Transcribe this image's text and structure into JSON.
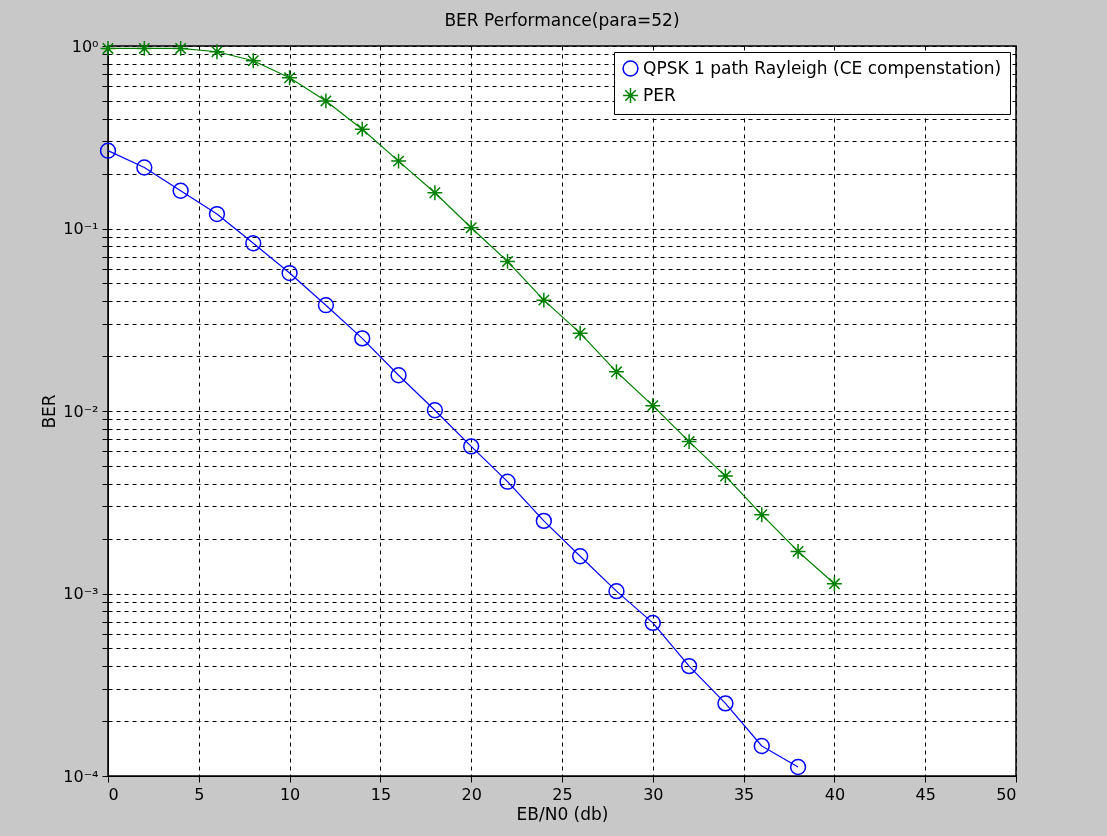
{
  "chart_data": {
    "type": "line",
    "title": "BER Performance(para=52)",
    "xlabel": "EB/N0 (db)",
    "ylabel": "BER",
    "xlim": [
      0,
      50
    ],
    "xticks": [
      0,
      5,
      10,
      15,
      20,
      25,
      30,
      35,
      40,
      45,
      50
    ],
    "ylim": [
      0.0001,
      1
    ],
    "log": true,
    "yticks": [
      {
        "value": 0.0001,
        "label": "10⁻⁴"
      },
      {
        "value": 0.0002,
        "label": null
      },
      {
        "value": 0.0003,
        "label": null
      },
      {
        "value": 0.0004,
        "label": null
      },
      {
        "value": 0.0005,
        "label": null
      },
      {
        "value": 0.0006,
        "label": null
      },
      {
        "value": 0.0007,
        "label": null
      },
      {
        "value": 0.0008,
        "label": null
      },
      {
        "value": 0.0009,
        "label": null
      },
      {
        "value": 0.001,
        "label": "10⁻³"
      },
      {
        "value": 0.002,
        "label": null
      },
      {
        "value": 0.003,
        "label": null
      },
      {
        "value": 0.004,
        "label": null
      },
      {
        "value": 0.005,
        "label": null
      },
      {
        "value": 0.006,
        "label": null
      },
      {
        "value": 0.007,
        "label": null
      },
      {
        "value": 0.008,
        "label": null
      },
      {
        "value": 0.009,
        "label": null
      },
      {
        "value": 0.01,
        "label": "10⁻²"
      },
      {
        "value": 0.02,
        "label": null
      },
      {
        "value": 0.03,
        "label": null
      },
      {
        "value": 0.04,
        "label": null
      },
      {
        "value": 0.05,
        "label": null
      },
      {
        "value": 0.06,
        "label": null
      },
      {
        "value": 0.07,
        "label": null
      },
      {
        "value": 0.08,
        "label": null
      },
      {
        "value": 0.09,
        "label": null
      },
      {
        "value": 0.1,
        "label": "10⁻¹"
      },
      {
        "value": 0.2,
        "label": null
      },
      {
        "value": 0.3,
        "label": null
      },
      {
        "value": 0.4,
        "label": null
      },
      {
        "value": 0.5,
        "label": null
      },
      {
        "value": 0.6,
        "label": null
      },
      {
        "value": 0.7,
        "label": null
      },
      {
        "value": 0.8,
        "label": null
      },
      {
        "value": 0.9,
        "label": null
      },
      {
        "value": 1,
        "label": "10⁰"
      }
    ],
    "grid": true,
    "legend": "top right",
    "series": [
      {
        "name": "QPSK 1 path Rayleigh (CE compenstation)",
        "color": "#0000ff",
        "marker": "circle",
        "x": [
          0,
          2,
          4,
          6,
          8,
          10,
          12,
          14,
          16,
          18,
          20,
          22,
          24,
          26,
          28,
          30,
          32,
          34,
          36,
          38
        ],
        "values": [
          0.267,
          0.216,
          0.161,
          0.12,
          0.083,
          0.057,
          0.038,
          0.025,
          0.0157,
          0.0101,
          0.0064,
          0.0041,
          0.0025,
          0.0016,
          0.00103,
          0.00069,
          0.0004,
          0.00025,
          0.000146,
          0.000112
        ]
      },
      {
        "name": "PER",
        "color": "#008000",
        "marker": "cross",
        "x": [
          0,
          2,
          4,
          6,
          8,
          10,
          12,
          14,
          16,
          18,
          20,
          22,
          24,
          26,
          28,
          30,
          32,
          34,
          36,
          38,
          40
        ],
        "values": [
          0.97,
          0.97,
          0.97,
          0.93,
          0.83,
          0.67,
          0.5,
          0.35,
          0.234,
          0.157,
          0.101,
          0.066,
          0.0405,
          0.0267,
          0.0164,
          0.0107,
          0.0068,
          0.0044,
          0.0027,
          0.0017,
          0.00113
        ]
      }
    ]
  }
}
